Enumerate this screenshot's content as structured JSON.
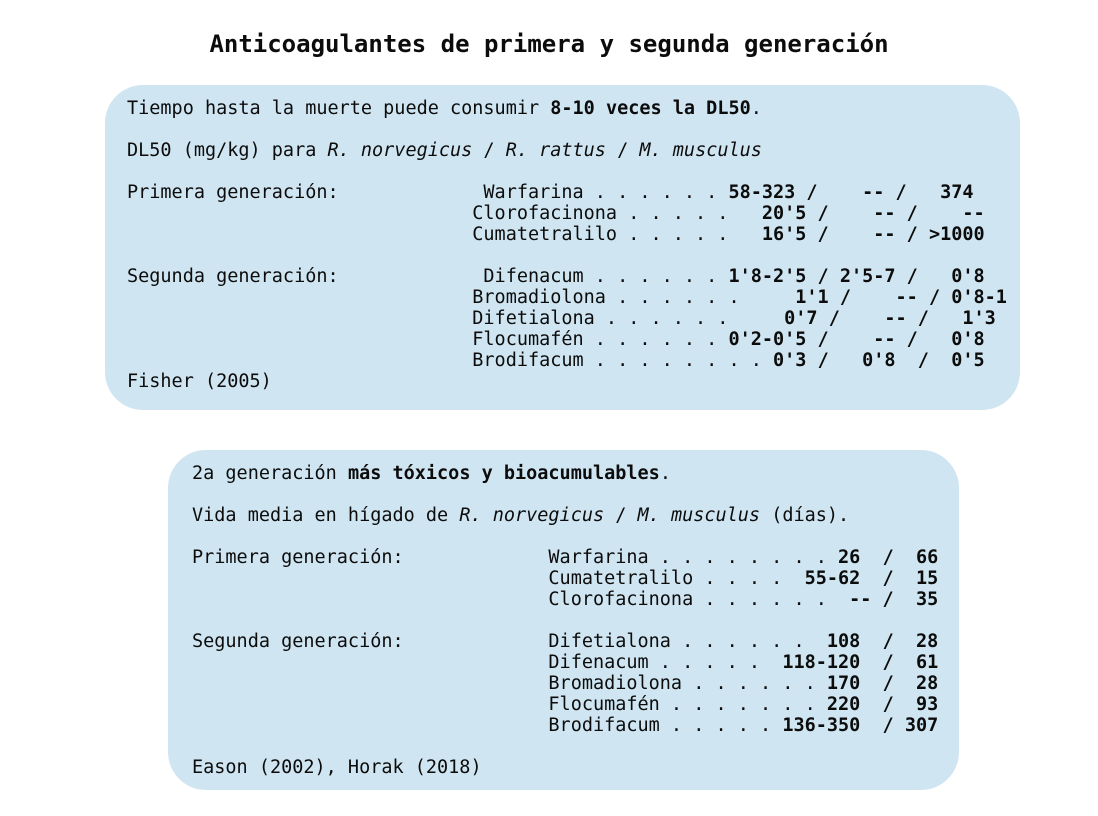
{
  "title": "Anticoagulantes de primera y segunda generación",
  "colors": {
    "page_bg": "#ffffff",
    "box_bg": "#cfe5f1",
    "text": "#0c0c0c"
  },
  "box1": {
    "lines": [
      [
        {
          "t": "Tiempo hasta la muerte puede consumir ",
          "s": ""
        },
        {
          "t": "8-10 veces la DL50",
          "s": "b"
        },
        {
          "t": ".",
          "s": ""
        }
      ],
      [],
      [
        {
          "t": "DL50 (mg/kg) para ",
          "s": ""
        },
        {
          "t": "R. norvegicus",
          "s": "i"
        },
        {
          "t": " / ",
          "s": ""
        },
        {
          "t": "R. rattus",
          "s": "i"
        },
        {
          "t": " / ",
          "s": ""
        },
        {
          "t": "M. musculus",
          "s": "i"
        }
      ],
      [],
      [
        {
          "t": "Primera generación:             Warfarina . . . . . . ",
          "s": ""
        },
        {
          "t": "58-323 /    -- /   374",
          "s": "b"
        }
      ],
      [
        {
          "t": "                               Clorofacinona . . . . . ",
          "s": ""
        },
        {
          "t": "  20'5 /    -- /    --",
          "s": "b"
        }
      ],
      [
        {
          "t": "                               Cumatetralilo . . . . . ",
          "s": ""
        },
        {
          "t": "  16'5 /    -- / >1000",
          "s": "b"
        }
      ],
      [],
      [
        {
          "t": "Segunda generación:             Difenacum . . . . . . ",
          "s": ""
        },
        {
          "t": "1'8-2'5 / 2'5-7 /   0'8",
          "s": "b"
        }
      ],
      [
        {
          "t": "                               Bromadiolona . . . . . . ",
          "s": ""
        },
        {
          "t": "    1'1 /    -- / 0'8-1",
          "s": "b"
        }
      ],
      [
        {
          "t": "                               Difetialona . . . . . . ",
          "s": ""
        },
        {
          "t": "    0'7 /    -- /   1'3",
          "s": "b"
        }
      ],
      [
        {
          "t": "                               Flocumafén . . . . . . ",
          "s": ""
        },
        {
          "t": "0'2-0'5 /    -- /   0'8",
          "s": "b"
        }
      ],
      [
        {
          "t": "                               Brodifacum . . . . . . . . ",
          "s": ""
        },
        {
          "t": "0'3 /   0'8  /  0'5",
          "s": "b"
        }
      ],
      [
        {
          "t": "Fisher (2005)",
          "s": ""
        }
      ]
    ]
  },
  "box2": {
    "lines": [
      [
        {
          "t": "2a generación ",
          "s": ""
        },
        {
          "t": "más tóxicos y bioacumulables",
          "s": "b"
        },
        {
          "t": ".",
          "s": ""
        }
      ],
      [],
      [
        {
          "t": "Vida media en hígado de ",
          "s": ""
        },
        {
          "t": "R. norvegicus",
          "s": "i"
        },
        {
          "t": " / ",
          "s": ""
        },
        {
          "t": "M. musculus",
          "s": "i"
        },
        {
          "t": " (días).",
          "s": ""
        }
      ],
      [],
      [
        {
          "t": "Primera generación:             Warfarina . . . . . . . . ",
          "s": ""
        },
        {
          "t": "26  /  66",
          "s": "b"
        }
      ],
      [
        {
          "t": "                                Cumatetralilo . . . .  ",
          "s": ""
        },
        {
          "t": "55-62  /  15",
          "s": "b"
        }
      ],
      [
        {
          "t": "                                Clorofacinona . . . . . .  ",
          "s": ""
        },
        {
          "t": "-- /  35",
          "s": "b"
        }
      ],
      [],
      [
        {
          "t": "Segunda generación:             Difetialona . . . . . .  ",
          "s": ""
        },
        {
          "t": "108  /  28",
          "s": "b"
        }
      ],
      [
        {
          "t": "                                Difenacum . . . . .  ",
          "s": ""
        },
        {
          "t": "118-120  /  61",
          "s": "b"
        }
      ],
      [
        {
          "t": "                                Bromadiolona . . . . . . ",
          "s": ""
        },
        {
          "t": "170  /  28",
          "s": "b"
        }
      ],
      [
        {
          "t": "                                Flocumafén . . . . . . . ",
          "s": ""
        },
        {
          "t": "220  /  93",
          "s": "b"
        }
      ],
      [
        {
          "t": "                                Brodifacum . . . . . ",
          "s": ""
        },
        {
          "t": "136-350  / 307",
          "s": "b"
        }
      ],
      [],
      [
        {
          "t": "Eason (2002), Horak (2018)",
          "s": ""
        }
      ]
    ]
  }
}
